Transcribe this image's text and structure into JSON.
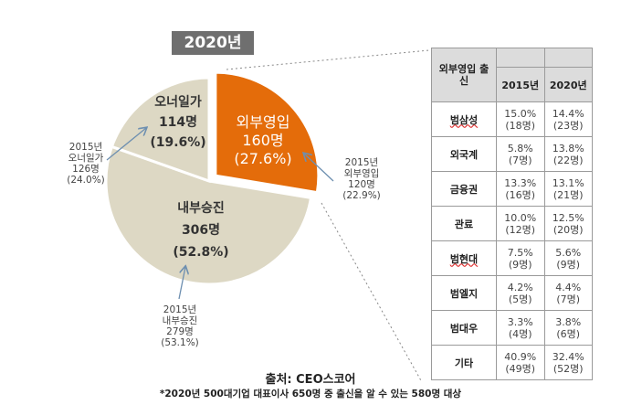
{
  "chart_data": {
    "type": "pie",
    "title": "2020년",
    "slices": [
      {
        "name": "외부영입",
        "count_label": "160명",
        "pct_label": "(27.6%)",
        "value": 27.6,
        "color": "#e46c0a",
        "exploded": true,
        "prev": {
          "year": "2015년",
          "name": "외부영입",
          "count": "120명",
          "pct": "(22.9%)"
        }
      },
      {
        "name": "내부승진",
        "count_label": "306명",
        "pct_label": "(52.8%)",
        "value": 52.8,
        "color": "#ddd8c4",
        "exploded": false,
        "prev": {
          "year": "2015년",
          "name": "내부승진",
          "count": "279명",
          "pct": "(53.1%)"
        }
      },
      {
        "name": "오너일가",
        "count_label": "114명",
        "pct_label": "(19.6%)",
        "value": 19.6,
        "color": "#ddd8c4",
        "exploded": false,
        "prev": {
          "year": "2015년",
          "name": "오너일가",
          "count": "126명",
          "pct": "(24.0%)"
        }
      }
    ]
  },
  "table": {
    "header_label": "외부영입 출신",
    "columns": [
      "2015년",
      "2020년"
    ],
    "rows": [
      {
        "name": "범삼성",
        "v2015": "15.0%",
        "n2015": "(18명)",
        "v2020": "14.4%",
        "n2020": "(23명)"
      },
      {
        "name": "외국계",
        "v2015": "5.8%",
        "n2015": "(7명)",
        "v2020": "13.8%",
        "n2020": "(22명)"
      },
      {
        "name": "금융권",
        "v2015": "13.3%",
        "n2015": "(16명)",
        "v2020": "13.1%",
        "n2020": "(21명)"
      },
      {
        "name": "관료",
        "v2015": "10.0%",
        "n2015": "(12명)",
        "v2020": "12.5%",
        "n2020": "(20명)"
      },
      {
        "name": "범현대",
        "v2015": "7.5%",
        "n2015": "(9명)",
        "v2020": "5.6%",
        "n2020": "(9명)"
      },
      {
        "name": "범엘지",
        "v2015": "4.2%",
        "n2015": "(5명)",
        "v2020": "4.4%",
        "n2020": "(7명)"
      },
      {
        "name": "범대우",
        "v2015": "3.3%",
        "n2015": "(4명)",
        "v2020": "3.8%",
        "n2020": "(6명)"
      },
      {
        "name": "기타",
        "v2015": "40.9%",
        "n2015": "(49명)",
        "v2020": "32.4%",
        "n2020": "(52명)"
      }
    ]
  },
  "footer": {
    "source": "출처: CEO스코어",
    "note": "*2020년 500대기업 대표이사 650명 중 출신을 알 수 있는 580명 대상"
  }
}
